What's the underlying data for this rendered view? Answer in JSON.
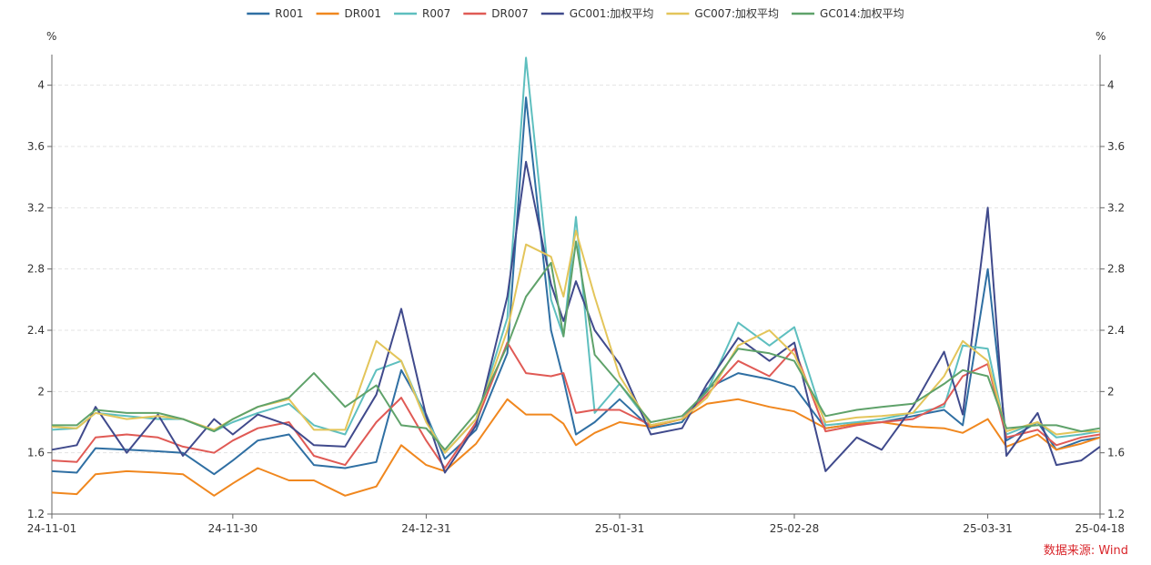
{
  "chart_data": {
    "type": "line",
    "unit_left": "%",
    "unit_right": "%",
    "source": "数据来源: Wind",
    "ylim": [
      1.2,
      4.2
    ],
    "y_ticks": [
      "1.2",
      "1.6",
      "2",
      "2.4",
      "2.8",
      "3.2",
      "3.6",
      "4"
    ],
    "x_tick_labels": [
      "24-11-01",
      "24-11-30",
      "24-12-31",
      "25-01-31",
      "25-02-28",
      "25-03-31",
      "25-04-18"
    ],
    "x": [
      "24-11-01",
      "24-11-05",
      "24-11-08",
      "24-11-13",
      "24-11-18",
      "24-11-22",
      "24-11-27",
      "24-11-30",
      "24-12-04",
      "24-12-09",
      "24-12-13",
      "24-12-18",
      "24-12-23",
      "24-12-27",
      "24-12-31",
      "25-01-03",
      "25-01-08",
      "25-01-13",
      "25-01-16",
      "25-01-20",
      "25-01-22",
      "25-01-24",
      "25-01-27",
      "25-01-31",
      "25-02-05",
      "25-02-10",
      "25-02-14",
      "25-02-19",
      "25-02-24",
      "25-02-28",
      "25-03-05",
      "25-03-10",
      "25-03-14",
      "25-03-19",
      "25-03-24",
      "25-03-27",
      "25-03-31",
      "25-04-03",
      "25-04-08",
      "25-04-11",
      "25-04-15",
      "25-04-18"
    ],
    "series": [
      {
        "name": "R001",
        "color": "#2f6fa3",
        "values": [
          1.48,
          1.47,
          1.63,
          1.62,
          1.61,
          1.6,
          1.46,
          1.55,
          1.68,
          1.72,
          1.52,
          1.5,
          1.54,
          2.14,
          1.85,
          1.56,
          1.75,
          2.25,
          3.92,
          2.4,
          2.08,
          1.72,
          1.8,
          1.95,
          1.76,
          1.8,
          2.02,
          2.12,
          2.08,
          2.03,
          1.76,
          1.79,
          1.8,
          1.84,
          1.88,
          1.78,
          2.8,
          1.68,
          1.8,
          1.62,
          1.68,
          1.7
        ]
      },
      {
        "name": "DR001",
        "color": "#f0871e",
        "values": [
          1.34,
          1.33,
          1.46,
          1.48,
          1.47,
          1.46,
          1.32,
          1.4,
          1.5,
          1.42,
          1.42,
          1.32,
          1.38,
          1.65,
          1.52,
          1.48,
          1.66,
          1.95,
          1.85,
          1.85,
          1.79,
          1.65,
          1.73,
          1.8,
          1.77,
          1.82,
          1.92,
          1.95,
          1.9,
          1.87,
          1.76,
          1.79,
          1.8,
          1.77,
          1.76,
          1.73,
          1.82,
          1.64,
          1.72,
          1.62,
          1.66,
          1.7
        ]
      },
      {
        "name": "R007",
        "color": "#5ebfbf",
        "values": [
          1.75,
          1.76,
          1.86,
          1.84,
          1.82,
          1.82,
          1.74,
          1.8,
          1.86,
          1.92,
          1.78,
          1.72,
          2.14,
          2.2,
          1.82,
          1.6,
          1.82,
          2.48,
          4.18,
          2.6,
          2.36,
          3.14,
          1.86,
          2.05,
          1.78,
          1.82,
          2.0,
          2.45,
          2.3,
          2.42,
          1.78,
          1.8,
          1.82,
          1.86,
          1.9,
          2.3,
          2.28,
          1.72,
          1.8,
          1.7,
          1.72,
          1.74
        ]
      },
      {
        "name": "DR007",
        "color": "#e05a55",
        "values": [
          1.55,
          1.54,
          1.7,
          1.72,
          1.7,
          1.64,
          1.6,
          1.68,
          1.76,
          1.8,
          1.58,
          1.52,
          1.8,
          1.96,
          1.68,
          1.5,
          1.8,
          2.32,
          2.12,
          2.1,
          2.12,
          1.86,
          1.88,
          1.88,
          1.78,
          1.82,
          1.98,
          2.2,
          2.1,
          2.28,
          1.74,
          1.78,
          1.8,
          1.82,
          1.92,
          2.1,
          2.18,
          1.7,
          1.75,
          1.65,
          1.7,
          1.72
        ]
      },
      {
        "name": "GC001:加权平均",
        "color": "#404a8c",
        "values": [
          1.62,
          1.65,
          1.9,
          1.6,
          1.85,
          1.58,
          1.82,
          1.72,
          1.85,
          1.78,
          1.65,
          1.64,
          1.98,
          2.54,
          1.84,
          1.47,
          1.78,
          2.62,
          3.5,
          2.7,
          2.46,
          2.72,
          2.4,
          2.18,
          1.72,
          1.76,
          2.05,
          2.35,
          2.2,
          2.32,
          1.48,
          1.7,
          1.62,
          1.9,
          2.26,
          1.85,
          3.2,
          1.58,
          1.86,
          1.52,
          1.55,
          1.64
        ]
      },
      {
        "name": "GC007:加权平均",
        "color": "#e3c55a",
        "values": [
          1.77,
          1.76,
          1.86,
          1.82,
          1.84,
          1.82,
          1.75,
          1.82,
          1.9,
          1.95,
          1.75,
          1.75,
          2.33,
          2.2,
          1.8,
          1.6,
          1.82,
          2.4,
          2.96,
          2.88,
          2.62,
          3.05,
          2.62,
          2.1,
          1.78,
          1.82,
          1.96,
          2.3,
          2.4,
          2.24,
          1.8,
          1.83,
          1.84,
          1.86,
          2.1,
          2.33,
          2.2,
          1.74,
          1.8,
          1.72,
          1.74,
          1.74
        ]
      },
      {
        "name": "GC014:加权平均",
        "color": "#5fa26a",
        "values": [
          1.78,
          1.78,
          1.88,
          1.86,
          1.86,
          1.82,
          1.74,
          1.82,
          1.9,
          1.96,
          2.12,
          1.9,
          2.04,
          1.78,
          1.76,
          1.62,
          1.86,
          2.3,
          2.62,
          2.84,
          2.36,
          2.98,
          2.24,
          2.05,
          1.8,
          1.84,
          2.0,
          2.28,
          2.25,
          2.2,
          1.84,
          1.88,
          1.9,
          1.92,
          2.05,
          2.14,
          2.1,
          1.76,
          1.78,
          1.78,
          1.74,
          1.76
        ]
      }
    ]
  }
}
